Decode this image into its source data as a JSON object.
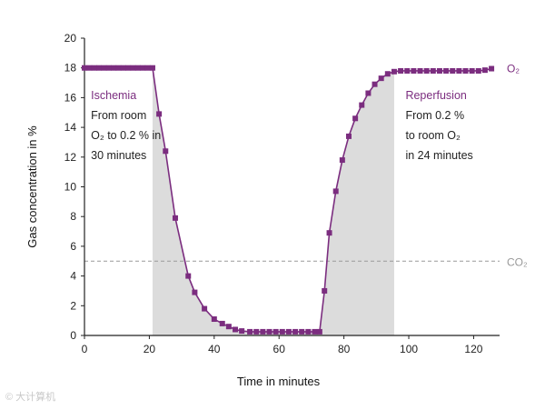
{
  "chart_data": {
    "type": "line",
    "xlabel": "Time in minutes",
    "ylabel": "Gas concentration in %",
    "xlim": [
      0,
      128
    ],
    "ylim": [
      0,
      20
    ],
    "xticks": [
      0,
      20,
      40,
      60,
      80,
      100,
      120
    ],
    "yticks": [
      0,
      2,
      4,
      6,
      8,
      10,
      12,
      14,
      16,
      18,
      20
    ],
    "series": [
      {
        "name": "O₂",
        "color": "#7b2d7f",
        "points": [
          [
            0,
            18
          ],
          [
            1.5,
            18
          ],
          [
            3,
            18
          ],
          [
            4.5,
            18
          ],
          [
            6,
            18
          ],
          [
            7.5,
            18
          ],
          [
            9,
            18
          ],
          [
            10.5,
            18
          ],
          [
            12,
            18
          ],
          [
            13.5,
            18
          ],
          [
            15,
            18
          ],
          [
            16.5,
            18
          ],
          [
            18,
            18
          ],
          [
            19.5,
            18
          ],
          [
            21,
            18
          ],
          [
            23,
            14.9
          ],
          [
            25,
            12.4
          ],
          [
            28,
            7.9
          ],
          [
            32,
            4.0
          ],
          [
            34,
            2.9
          ],
          [
            37,
            1.8
          ],
          [
            40,
            1.1
          ],
          [
            42.5,
            0.8
          ],
          [
            44.5,
            0.6
          ],
          [
            46.5,
            0.4
          ],
          [
            48.5,
            0.3
          ],
          [
            51,
            0.25
          ],
          [
            53,
            0.25
          ],
          [
            55,
            0.25
          ],
          [
            57,
            0.25
          ],
          [
            59,
            0.25
          ],
          [
            61,
            0.25
          ],
          [
            63,
            0.25
          ],
          [
            65,
            0.25
          ],
          [
            67,
            0.25
          ],
          [
            69,
            0.25
          ],
          [
            71,
            0.25
          ],
          [
            72.5,
            0.25
          ],
          [
            74,
            3.0
          ],
          [
            75.5,
            6.9
          ],
          [
            77.5,
            9.7
          ],
          [
            79.5,
            11.8
          ],
          [
            81.5,
            13.4
          ],
          [
            83.5,
            14.6
          ],
          [
            85.5,
            15.5
          ],
          [
            87.5,
            16.3
          ],
          [
            89.5,
            16.9
          ],
          [
            91.5,
            17.3
          ],
          [
            93.5,
            17.6
          ],
          [
            95.5,
            17.75
          ],
          [
            97.5,
            17.8
          ],
          [
            99.5,
            17.8
          ],
          [
            101.5,
            17.8
          ],
          [
            103.5,
            17.8
          ],
          [
            105.5,
            17.8
          ],
          [
            107.5,
            17.8
          ],
          [
            109.5,
            17.8
          ],
          [
            111.5,
            17.8
          ],
          [
            113.5,
            17.8
          ],
          [
            115.5,
            17.8
          ],
          [
            117.5,
            17.8
          ],
          [
            119.5,
            17.8
          ],
          [
            121.5,
            17.8
          ],
          [
            123.5,
            17.85
          ],
          [
            125.5,
            17.95
          ]
        ]
      },
      {
        "name": "CO₂",
        "color": "#9a9a9a",
        "style": "dashed",
        "points": [
          [
            0,
            5
          ],
          [
            128,
            5
          ]
        ]
      }
    ],
    "shaded_regions": [
      {
        "name": "ischemia-shade",
        "x_start": 21,
        "x_end": 72.5
      },
      {
        "name": "reperfusion-shade",
        "x_start": 72.5,
        "x_end": 95.5
      }
    ],
    "annotations": [
      {
        "id": "ischemia",
        "title": "Ischemia",
        "lines": [
          "From room",
          "O₂ to 0.2 % in",
          "30 minutes"
        ],
        "x": 2,
        "y": 15.9
      },
      {
        "id": "reperfusion",
        "title": "Reperfusion",
        "lines": [
          "From 0.2 %",
          "to room O₂",
          "in 24 minutes"
        ],
        "x": 99,
        "y": 15.9
      }
    ],
    "series_labels": [
      {
        "text": "O₂",
        "series": "O₂"
      },
      {
        "text": "CO₂",
        "series": "CO₂"
      }
    ]
  },
  "watermark": "© 大计算机"
}
